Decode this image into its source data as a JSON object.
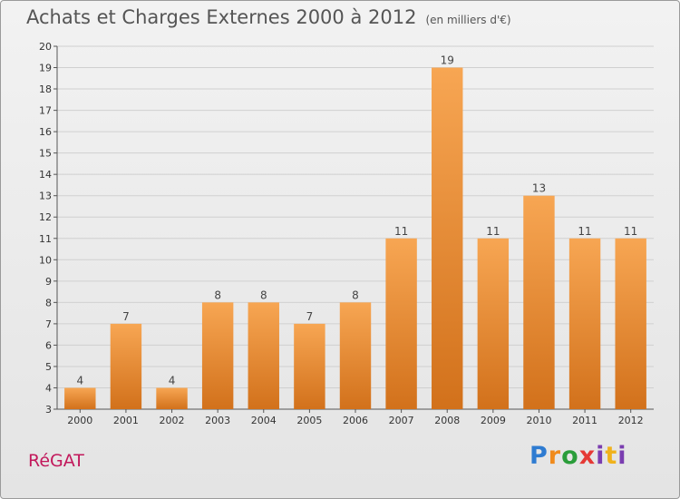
{
  "title": "Achats et Charges Externes 2000 à 2012",
  "subtitle": "(en milliers d'€)",
  "commune": "RéGAT",
  "logo": {
    "p": "P",
    "r": "r",
    "o": "o",
    "x": "x",
    "i": "i",
    "t": "t",
    "i2": "i"
  },
  "colors": {
    "bar_top": "#f7a653",
    "bar_bottom": "#d2711b",
    "grid": "#d0d0d0",
    "axis": "#555555"
  },
  "chart_data": {
    "type": "bar",
    "categories": [
      "2000",
      "2001",
      "2002",
      "2003",
      "2004",
      "2005",
      "2006",
      "2007",
      "2008",
      "2009",
      "2010",
      "2011",
      "2012"
    ],
    "values": [
      4,
      7,
      4,
      8,
      8,
      7,
      8,
      11,
      19,
      11,
      13,
      11,
      11
    ],
    "data_labels": [
      "4",
      "7",
      "4",
      "8",
      "8",
      "7",
      "8",
      "11",
      "19",
      "11",
      "13",
      "11",
      "11"
    ],
    "ylim": [
      3,
      20
    ],
    "yticks": [
      "3",
      "4",
      "5",
      "6",
      "7",
      "8",
      "9",
      "10",
      "11",
      "12",
      "13",
      "14",
      "15",
      "16",
      "17",
      "18",
      "19",
      "20"
    ],
    "grid": true,
    "legend": "none"
  }
}
